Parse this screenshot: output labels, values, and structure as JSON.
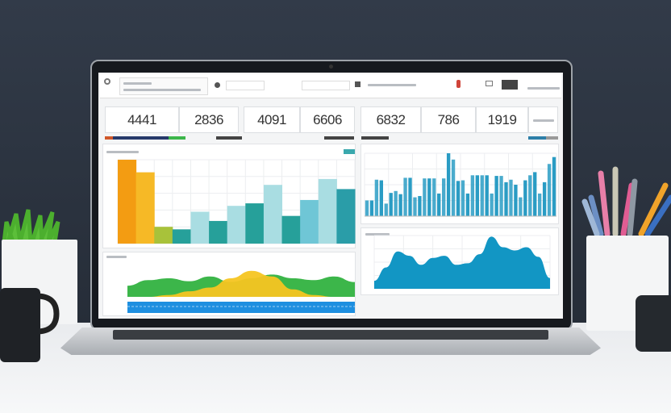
{
  "scene": {
    "wall_color": "#2b3340",
    "desk_color": "#eef0f2"
  },
  "dashboard": {
    "kpis": [
      {
        "value": "4441"
      },
      {
        "value": "2836"
      },
      {
        "value": "4091"
      },
      {
        "value": "6606"
      },
      {
        "value": "6832"
      },
      {
        "value": "786"
      },
      {
        "value": "1919"
      }
    ],
    "accent_colors": {
      "orange": "#f39c12",
      "yellow": "#f6b926",
      "olive": "#a8c23a",
      "teal": "#26a09a",
      "light_blue": "#a9dde2",
      "blue": "#1e9bc8",
      "green": "#3cb64a"
    }
  },
  "chart_data": [
    {
      "type": "bar",
      "position": "left-top",
      "values": [
        100,
        85,
        20,
        17,
        38,
        27,
        45,
        48,
        70,
        33,
        52,
        77,
        65
      ],
      "colors": [
        "#f39c12",
        "#f6b926",
        "#a8c23a",
        "#26a09a",
        "#a9dde2",
        "#26a09a",
        "#a9dde2",
        "#26a09a",
        "#a9dde2",
        "#26a09a",
        "#6fc6d6",
        "#a9dde2",
        "#2a9da8"
      ],
      "ylim": [
        0,
        100
      ],
      "grid": true
    },
    {
      "type": "bar",
      "position": "right-top",
      "values": [
        25,
        25,
        58,
        57,
        20,
        37,
        40,
        35,
        61,
        61,
        30,
        32,
        60,
        60,
        60,
        36,
        60,
        100,
        90,
        56,
        57,
        36,
        65,
        65,
        65,
        65,
        36,
        64,
        64,
        54,
        58,
        50,
        30,
        57,
        65,
        70,
        36,
        54,
        83,
        94
      ],
      "ylim": [
        0,
        100
      ],
      "color": "#2a9cc4",
      "grid": true
    },
    {
      "type": "area",
      "position": "right-bottom",
      "values": [
        15,
        40,
        70,
        62,
        45,
        58,
        62,
        45,
        48,
        65,
        98,
        78,
        72,
        78,
        60,
        20
      ],
      "ylim": [
        0,
        100
      ],
      "color": "#1296c4",
      "grid": true
    },
    {
      "type": "area",
      "position": "left-bottom",
      "series": [
        {
          "values": [
            30,
            45,
            50,
            42,
            55,
            40,
            50,
            60,
            50,
            45,
            55,
            40
          ],
          "color": "#3cb64a"
        },
        {
          "values": [
            0,
            0,
            5,
            15,
            25,
            50,
            70,
            55,
            20,
            5,
            0,
            0
          ],
          "color": "#f6c521"
        }
      ],
      "ylim": [
        0,
        100
      ]
    }
  ]
}
